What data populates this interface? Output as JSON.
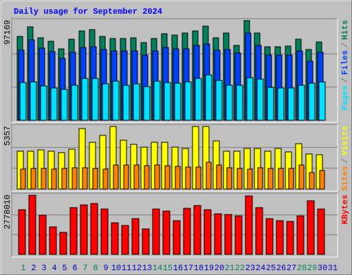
{
  "chart_data": {
    "type": "bar",
    "title": "Daily usage for September 2024",
    "categories": [
      "1",
      "2",
      "3",
      "4",
      "5",
      "6",
      "7",
      "8",
      "9",
      "10",
      "11",
      "12",
      "13",
      "14",
      "15",
      "16",
      "17",
      "18",
      "19",
      "20",
      "21",
      "22",
      "23",
      "24",
      "25",
      "26",
      "27",
      "28",
      "29",
      "30",
      "31"
    ],
    "category_colors": [
      "#00805c",
      "#0000c0",
      "#0000c0",
      "#0000c0",
      "#0000c0",
      "#0000c0",
      "#00805c",
      "#00805c",
      "#0000c0",
      "#0000c0",
      "#0000c0",
      "#0000c0",
      "#0000c0",
      "#00805c",
      "#00805c",
      "#0000c0",
      "#0000c0",
      "#0000c0",
      "#0000c0",
      "#0000c0",
      "#00805c",
      "#00805c",
      "#0000c0",
      "#0000c0",
      "#0000c0",
      "#0000c0",
      "#0000c0",
      "#00805c",
      "#00805c",
      "#0000c0",
      "#0000c0"
    ],
    "legend_separator": "/",
    "panels": [
      {
        "ylim": [
          0,
          97169
        ],
        "yticks": [
          97169
        ],
        "series": [
          {
            "name": "Hits",
            "color": "#00805c",
            "values": [
              81740,
              91120,
              80400,
              77050,
              69680,
              79060,
              87100,
              88440,
              81740,
              79730,
              79730,
              80400,
              75710,
              79730,
              84420,
              83080,
              85090,
              87100,
              91790,
              80400,
              85090,
              73030,
              97169,
              85090,
              71690,
              71690,
              72360,
              79060,
              69010,
              76380,
              null
            ]
          },
          {
            "name": "Files",
            "color": "#0040ff",
            "values": [
              68340,
              78390,
              70350,
              67000,
              60300,
              66330,
              71020,
              71690,
              69010,
              67670,
              67670,
              67670,
              63650,
              67670,
              71020,
              69680,
              69680,
              73030,
              74370,
              68340,
              69010,
              65660,
              85090,
              73030,
              63650,
              63650,
              63650,
              67670,
              57620,
              66330,
              null
            ]
          },
          {
            "name": "Pages",
            "color": "#00e0ff",
            "values": [
              36850,
              37520,
              33500,
              31490,
              30150,
              34170,
              40870,
              40870,
              35510,
              38190,
              34170,
              35510,
              32830,
              38190,
              36850,
              36180,
              37520,
              40870,
              44220,
              38860,
              34170,
              34170,
              41540,
              40200,
              32160,
              31490,
              31490,
              34170,
              36180,
              37520,
              null
            ]
          }
        ]
      },
      {
        "ylim": [
          0,
          5357
        ],
        "yticks": [
          5357
        ],
        "series": [
          {
            "name": "Visits",
            "color": "#ffff00",
            "values": [
              3240,
              3240,
              3357,
              3240,
              3122,
              3416,
              5183,
              4005,
              4594,
              5357,
              4182,
              3829,
              3593,
              4005,
              4005,
              3593,
              3475,
              5357,
              5357,
              4123,
              3240,
              3240,
              3475,
              3475,
              3240,
              3475,
              3181,
              3887,
              3004,
              2945,
              null
            ]
          },
          {
            "name": "Sites",
            "color": "#ff8000",
            "values": [
              1708,
              1767,
              1767,
              1708,
              1767,
              1826,
              1826,
              1767,
              1708,
              2062,
              2062,
              2062,
              2003,
              2062,
              2003,
              1944,
              1885,
              1885,
              2297,
              2062,
              1826,
              1767,
              1708,
              1826,
              1767,
              1767,
              1767,
              2062,
              1414,
              1590,
              null
            ]
          }
        ]
      },
      {
        "ylim": [
          0,
          2778010
        ],
        "yticks": [
          2778010
        ],
        "series": [
          {
            "name": "KBytes",
            "color": "#ff0000",
            "values": [
              2099630,
              2778010,
              1841210,
              1292080,
              1033660,
              2196540,
              2325740,
              2390350,
              2131930,
              1485890,
              1356680,
              1679700,
              1195170,
              2131930,
              2035020,
              1582800,
              2164230,
              2293440,
              2099630,
              1905820,
              1873520,
              1808910,
              2745700,
              2196540,
              1679700,
              1582800,
              1550500,
              1808910,
              2519560,
              2131930,
              null
            ]
          }
        ]
      }
    ]
  }
}
